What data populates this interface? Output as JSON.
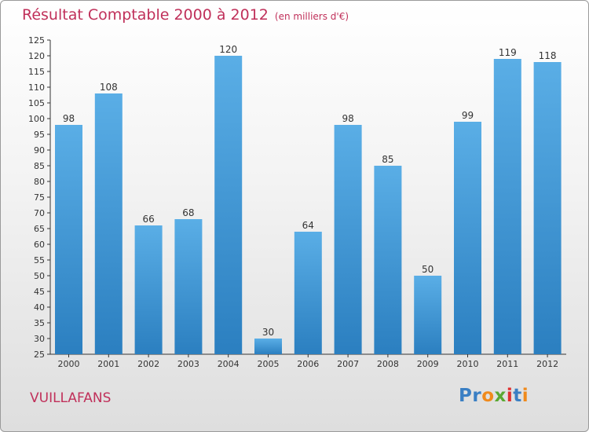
{
  "title": {
    "main": "Résultat Comptable 2000 à 2012",
    "sub": "(en milliers d'€)"
  },
  "footer": {
    "commune": "VUILLAFANS",
    "logo": "Proxiti"
  },
  "colors": {
    "bar_light": "#5aaee6",
    "bar_dark": "#2b7fc0",
    "title": "#c0305a",
    "logo_letters": [
      "#3a7fc4",
      "#3a7fc4",
      "#f08a1c",
      "#5aa832",
      "#e03030",
      "#3a7fc4",
      "#f08a1c"
    ]
  },
  "chart_data": {
    "type": "bar",
    "title": "Résultat Comptable 2000 à 2012",
    "subtitle": "(en milliers d'€)",
    "xlabel": "",
    "ylabel": "",
    "categories": [
      "2000",
      "2001",
      "2002",
      "2003",
      "2004",
      "2005",
      "2006",
      "2007",
      "2008",
      "2009",
      "2010",
      "2011",
      "2012"
    ],
    "values": [
      98,
      108,
      66,
      68,
      120,
      30,
      64,
      98,
      85,
      50,
      99,
      119,
      118
    ],
    "ylim": [
      25,
      125
    ],
    "yticks": [
      25,
      30,
      35,
      40,
      45,
      50,
      55,
      60,
      65,
      70,
      75,
      80,
      85,
      90,
      95,
      100,
      105,
      110,
      115,
      120,
      125
    ],
    "grid": false,
    "data_labels": true
  }
}
